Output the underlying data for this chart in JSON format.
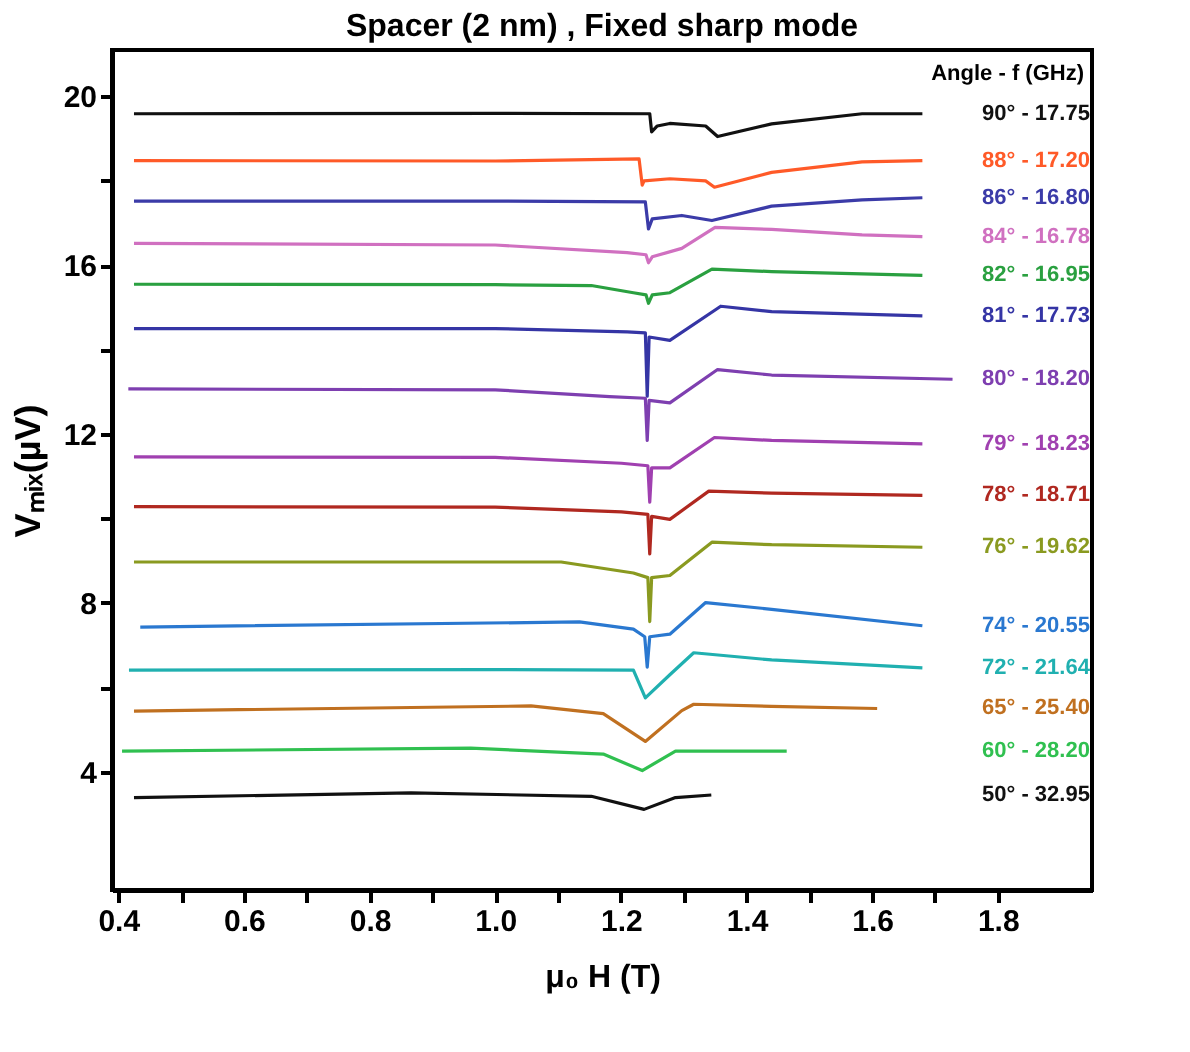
{
  "chart_data": {
    "type": "line",
    "title": "Spacer (2 nm) , Fixed sharp mode",
    "xlabel": "μ₀ H (T)",
    "ylabel": "Vₘᵢₓ(µV)",
    "legend_title": "Angle - f (GHz)",
    "legend": false,
    "grid": false,
    "marker": "none",
    "line_style": "solid",
    "xlim": [
      0.39,
      1.95
    ],
    "xticks": [
      {
        "value": 0.4,
        "label": "0.4"
      },
      {
        "value": 0.5,
        "label": null
      },
      {
        "value": 0.6,
        "label": "0.6"
      },
      {
        "value": 0.7,
        "label": null
      },
      {
        "value": 0.8,
        "label": "0.8"
      },
      {
        "value": 0.9,
        "label": null
      },
      {
        "value": 1.0,
        "label": "1.0"
      },
      {
        "value": 1.1,
        "label": null
      },
      {
        "value": 1.2,
        "label": "1.2"
      },
      {
        "value": 1.3,
        "label": null
      },
      {
        "value": 1.4,
        "label": "1.4"
      },
      {
        "value": 1.5,
        "label": null
      },
      {
        "value": 1.6,
        "label": "1.6"
      },
      {
        "value": 1.7,
        "label": null
      },
      {
        "value": 1.8,
        "label": "1.8"
      }
    ],
    "ylim": [
      1.2,
      21.1
    ],
    "yticks": [
      4,
      {
        "value": 6,
        "label": null
      },
      8,
      {
        "value": 10,
        "label": null
      },
      12,
      {
        "value": 14,
        "label": null
      },
      16,
      {
        "value": 18,
        "label": null
      },
      20
    ],
    "series": [
      {
        "name": "90° - 17.75",
        "color": "#111111",
        "x": [
          0.425,
          1.0,
          1.246,
          1.249,
          1.258,
          1.278,
          1.335,
          1.354,
          1.44,
          1.584,
          1.68
        ],
        "values": [
          19.59,
          19.6,
          19.59,
          19.16,
          19.3,
          19.36,
          19.3,
          19.05,
          19.35,
          19.59,
          19.59
        ]
      },
      {
        "name": "88° - 17.20",
        "color": "#ff5a28",
        "x": [
          0.425,
          1.0,
          1.229,
          1.234,
          1.237,
          1.278,
          1.335,
          1.349,
          1.44,
          1.584,
          1.68
        ],
        "values": [
          18.48,
          18.47,
          18.52,
          17.9,
          18.0,
          18.05,
          18.0,
          17.85,
          18.2,
          18.45,
          18.48
        ]
      },
      {
        "name": "86° - 16.80",
        "color": "#3b3ba8",
        "x": [
          0.425,
          1.0,
          1.239,
          1.244,
          1.25,
          1.297,
          1.345,
          1.44,
          1.584,
          1.68
        ],
        "values": [
          17.52,
          17.52,
          17.5,
          16.86,
          17.1,
          17.18,
          17.06,
          17.4,
          17.55,
          17.6
        ]
      },
      {
        "name": "84° - 16.78",
        "color": "#d070c0",
        "x": [
          0.425,
          1.0,
          1.21,
          1.24,
          1.244,
          1.25,
          1.297,
          1.35,
          1.44,
          1.584,
          1.68
        ],
        "values": [
          16.52,
          16.48,
          16.3,
          16.25,
          16.06,
          16.2,
          16.4,
          16.9,
          16.85,
          16.72,
          16.68
        ]
      },
      {
        "name": "82° - 16.95",
        "color": "#2aa040",
        "x": [
          0.425,
          1.0,
          1.153,
          1.22,
          1.24,
          1.244,
          1.25,
          1.278,
          1.345,
          1.44,
          1.68
        ],
        "values": [
          15.55,
          15.54,
          15.52,
          15.35,
          15.3,
          15.1,
          15.3,
          15.35,
          15.91,
          15.85,
          15.76
        ]
      },
      {
        "name": "81° - 17.73",
        "color": "#3535a5",
        "x": [
          0.425,
          1.0,
          1.21,
          1.239,
          1.242,
          1.245,
          1.278,
          1.359,
          1.44,
          1.68
        ],
        "values": [
          14.5,
          14.5,
          14.42,
          14.4,
          12.9,
          14.3,
          14.22,
          15.03,
          14.9,
          14.8
        ]
      },
      {
        "name": "80° - 18.20",
        "color": "#7e3fb0",
        "x": [
          0.416,
          1.0,
          1.182,
          1.239,
          1.242,
          1.245,
          1.278,
          1.354,
          1.44,
          1.728
        ],
        "values": [
          13.07,
          13.05,
          12.89,
          12.85,
          11.85,
          12.8,
          12.74,
          13.53,
          13.4,
          13.3
        ]
      },
      {
        "name": "79° - 18.23",
        "color": "#a040b0",
        "x": [
          0.425,
          1.0,
          1.201,
          1.243,
          1.246,
          1.249,
          1.278,
          1.349,
          1.44,
          1.68
        ],
        "values": [
          11.46,
          11.45,
          11.31,
          11.25,
          10.39,
          11.2,
          11.2,
          11.92,
          11.85,
          11.77
        ]
      },
      {
        "name": "78° - 18.71",
        "color": "#b02820",
        "x": [
          0.425,
          1.0,
          1.201,
          1.243,
          1.246,
          1.249,
          1.278,
          1.34,
          1.44,
          1.68
        ],
        "values": [
          10.28,
          10.27,
          10.16,
          10.1,
          9.16,
          10.05,
          9.98,
          10.65,
          10.6,
          10.55
        ]
      },
      {
        "name": "76° - 19.62",
        "color": "#8a9a20",
        "x": [
          0.425,
          1.105,
          1.22,
          1.243,
          1.246,
          1.249,
          1.278,
          1.345,
          1.44,
          1.68
        ],
        "values": [
          8.97,
          8.97,
          8.71,
          8.6,
          7.56,
          8.6,
          8.65,
          9.44,
          9.38,
          9.32
        ]
      },
      {
        "name": "74° - 20.55",
        "color": "#2a78d0",
        "x": [
          0.435,
          1.134,
          1.22,
          1.238,
          1.242,
          1.246,
          1.278,
          1.335,
          1.44,
          1.68
        ],
        "values": [
          7.43,
          7.55,
          7.38,
          7.2,
          6.48,
          7.2,
          7.26,
          8.01,
          7.85,
          7.46
        ]
      },
      {
        "name": "72° - 21.64",
        "color": "#20b0b0",
        "x": [
          0.417,
          1.0,
          1.22,
          1.239,
          1.278,
          1.316,
          1.44,
          1.68
        ],
        "values": [
          6.41,
          6.42,
          6.41,
          5.75,
          6.3,
          6.82,
          6.65,
          6.46
        ]
      },
      {
        "name": "65° - 25.40",
        "color": "#c07020",
        "x": [
          0.425,
          1.057,
          1.172,
          1.239,
          1.297,
          1.316,
          1.44,
          1.608
        ],
        "values": [
          5.44,
          5.56,
          5.38,
          4.72,
          5.45,
          5.6,
          5.55,
          5.5
        ]
      },
      {
        "name": "60° - 28.20",
        "color": "#30c050",
        "x": [
          0.406,
          0.961,
          1.172,
          1.234,
          1.287,
          1.464
        ],
        "values": [
          4.49,
          4.56,
          4.42,
          4.03,
          4.49,
          4.49
        ]
      },
      {
        "name": "50° - 32.95",
        "color": "#111111",
        "x": [
          0.425,
          0.866,
          1.153,
          1.237,
          1.287,
          1.344
        ],
        "values": [
          3.39,
          3.5,
          3.42,
          3.11,
          3.39,
          3.45
        ]
      }
    ]
  }
}
